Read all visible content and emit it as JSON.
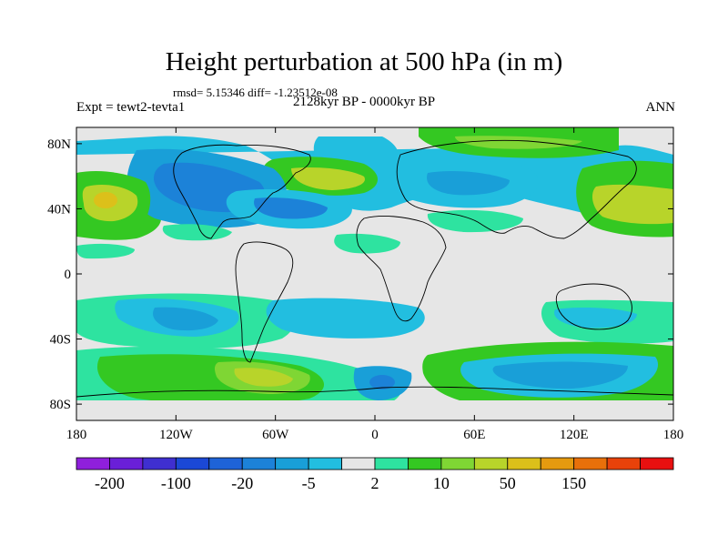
{
  "title": "Height perturbation at 500 hPa (in m)",
  "stats": "rmsd= 5.15346 diff= -1.23512e-08",
  "experiment": "Expt = tewt2-tevta1",
  "period": "2128kyr BP - 0000kyr BP",
  "season": "ANN",
  "lat_ticks": [
    "80N",
    "40N",
    "0",
    "40S",
    "80S"
  ],
  "lon_ticks": [
    "180",
    "120W",
    "60W",
    "0",
    "60E",
    "120E",
    "180"
  ],
  "colorbar": {
    "colors": [
      "#8f1fdc",
      "#6a1fd8",
      "#3f2fd0",
      "#1b48d6",
      "#1e63d8",
      "#1c82d8",
      "#199fd8",
      "#22bee0",
      "#e6e6e6",
      "#2ee3a0",
      "#34c822",
      "#7fd634",
      "#b8d42a",
      "#dcc01a",
      "#e59a0f",
      "#e8700a",
      "#e8420a",
      "#e81010"
    ],
    "labels": [
      "-200",
      "-100",
      "-20",
      "-5",
      "2",
      "10",
      "50",
      "150"
    ]
  },
  "chart_data": {
    "type": "filled-contour-map",
    "title": "Height perturbation at 500 hPa (in m)",
    "units": "m",
    "projection": "cylindrical equidistant",
    "xlim": [
      -180,
      180
    ],
    "ylim": [
      -90,
      90
    ],
    "contour_levels": [
      -250,
      -200,
      -150,
      -100,
      -50,
      -20,
      -10,
      -5,
      -2,
      2,
      5,
      10,
      20,
      50,
      100,
      150,
      200,
      250
    ],
    "anomaly_cells": [
      {
        "lon": -160,
        "lat": 38,
        "value": 50,
        "rx": 30,
        "ry": 14
      },
      {
        "lon": -170,
        "lat": 40,
        "value": 20,
        "rx": 18,
        "ry": 26
      },
      {
        "lon": -120,
        "lat": 55,
        "value": -20,
        "rx": 40,
        "ry": 22
      },
      {
        "lon": -55,
        "lat": 42,
        "value": -20,
        "rx": 35,
        "ry": 13
      },
      {
        "lon": -35,
        "lat": 60,
        "value": 10,
        "rx": 28,
        "ry": 9
      },
      {
        "lon": 50,
        "lat": 45,
        "value": -5,
        "rx": 38,
        "ry": 20
      },
      {
        "lon": 90,
        "lat": 77,
        "value": 10,
        "rx": 58,
        "ry": 7
      },
      {
        "lon": 150,
        "lat": 40,
        "value": 10,
        "rx": 28,
        "ry": 17
      },
      {
        "lon": -140,
        "lat": -27,
        "value": -5,
        "rx": 32,
        "ry": 9
      },
      {
        "lon": -45,
        "lat": -32,
        "value": -5,
        "rx": 45,
        "ry": 9
      },
      {
        "lon": -90,
        "lat": -65,
        "value": 20,
        "rx": 45,
        "ry": 11
      },
      {
        "lon": 100,
        "lat": -70,
        "value": -5,
        "rx": 65,
        "ry": 14
      },
      {
        "lon": 15,
        "lat": -70,
        "value": -20,
        "rx": 12,
        "ry": 5
      }
    ]
  }
}
